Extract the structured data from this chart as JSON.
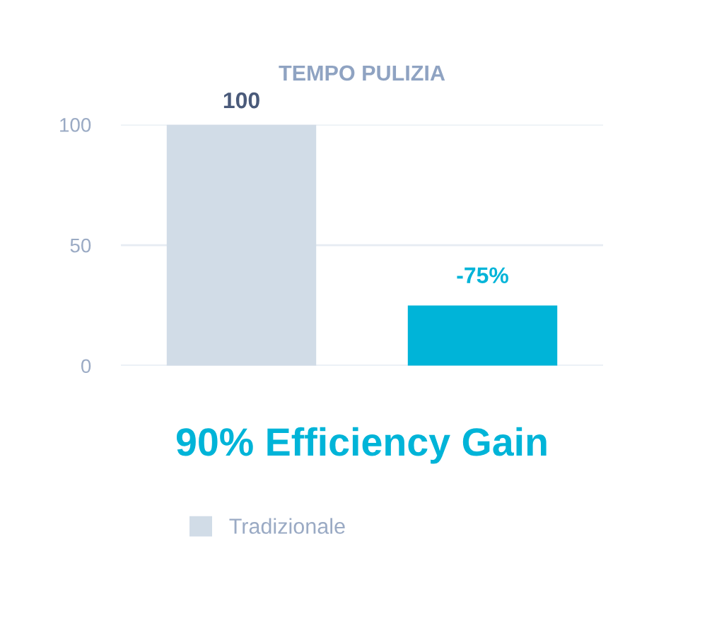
{
  "chart_data": {
    "type": "bar",
    "title": "TEMPO PULIZIA",
    "categories": [
      null,
      null
    ],
    "series": [
      {
        "name": "Tradizionale",
        "color": "#d1dce7",
        "values": [
          100,
          null
        ],
        "value_labels": [
          "100",
          null
        ]
      },
      {
        "color": "#00b4d8",
        "values": [
          null,
          25
        ]
      }
    ],
    "ylim": [
      0,
      100
    ],
    "yticks": [
      0,
      50,
      100
    ],
    "grid": "y",
    "legend": "bottom",
    "annotations": [
      {
        "text": "-75%",
        "y": 25
      },
      "90% Efficiency Gain"
    ]
  }
}
